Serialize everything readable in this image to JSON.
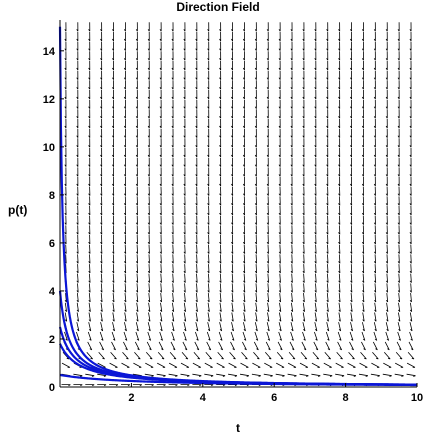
{
  "chart_data": {
    "type": "line",
    "title": "Direction Field",
    "xlabel": "t",
    "ylabel": "p(t)",
    "xlim": [
      0,
      10
    ],
    "ylim": [
      0,
      15.2
    ],
    "x_ticks": [
      {
        "value": 2,
        "label": "2"
      },
      {
        "value": 4,
        "label": "4"
      },
      {
        "value": 6,
        "label": "6"
      },
      {
        "value": 8,
        "label": "8"
      },
      {
        "value": 10,
        "label": "10"
      }
    ],
    "y_ticks": [
      {
        "value": 0,
        "label": "0"
      },
      {
        "value": 2,
        "label": "2"
      },
      {
        "value": 4,
        "label": "4"
      },
      {
        "value": 6,
        "label": "6"
      },
      {
        "value": 8,
        "label": "8"
      },
      {
        "value": 10,
        "label": "10"
      },
      {
        "value": 12,
        "label": "12"
      },
      {
        "value": 14,
        "label": "14"
      }
    ],
    "grid": false,
    "legend": "none",
    "direction_field": {
      "equation": "dp/dt = -p^2",
      "t_range": [
        0,
        10
      ],
      "p_range": [
        0.1,
        15
      ],
      "columns": 30,
      "rows": 38,
      "color": "#000000"
    },
    "series": [
      {
        "initial_value": 15,
        "color": "#0b16d6",
        "x": [
          0,
          0.05,
          0.1,
          0.2,
          0.3,
          0.5,
          0.75,
          1,
          1.5,
          2,
          3,
          4,
          6,
          8,
          10
        ],
        "y": [
          15,
          8.57,
          6.0,
          3.75,
          2.73,
          1.76,
          1.22,
          0.94,
          0.64,
          0.48,
          0.33,
          0.25,
          0.17,
          0.12,
          0.1
        ]
      },
      {
        "initial_value": 4,
        "color": "#0b16d6",
        "x": [
          0,
          0.05,
          0.1,
          0.2,
          0.3,
          0.5,
          0.75,
          1,
          1.5,
          2,
          3,
          4,
          6,
          8,
          10
        ],
        "y": [
          4,
          3.33,
          2.86,
          2.22,
          1.82,
          1.33,
          1.0,
          0.8,
          0.57,
          0.44,
          0.31,
          0.24,
          0.16,
          0.12,
          0.1
        ]
      },
      {
        "initial_value": 2.5,
        "color": "#0b16d6",
        "x": [
          0,
          0.05,
          0.1,
          0.2,
          0.3,
          0.5,
          0.75,
          1,
          1.5,
          2,
          3,
          4,
          6,
          8,
          10
        ],
        "y": [
          2.5,
          2.22,
          2.0,
          1.67,
          1.43,
          1.11,
          0.87,
          0.71,
          0.53,
          0.42,
          0.3,
          0.23,
          0.16,
          0.12,
          0.1
        ]
      },
      {
        "initial_value": 1.8,
        "color": "#0b16d6",
        "x": [
          0,
          0.05,
          0.1,
          0.2,
          0.3,
          0.5,
          0.75,
          1,
          1.5,
          2,
          3,
          4,
          6,
          8,
          10
        ],
        "y": [
          1.8,
          1.66,
          1.53,
          1.32,
          1.17,
          0.95,
          0.77,
          0.64,
          0.49,
          0.39,
          0.28,
          0.22,
          0.16,
          0.12,
          0.1
        ]
      },
      {
        "initial_value": 0.5,
        "color": "#0b16d6",
        "x": [
          0,
          0.5,
          1,
          2,
          3,
          4,
          6,
          8,
          10
        ],
        "y": [
          0.5,
          0.4,
          0.33,
          0.25,
          0.2,
          0.17,
          0.13,
          0.1,
          0.08
        ]
      }
    ]
  }
}
